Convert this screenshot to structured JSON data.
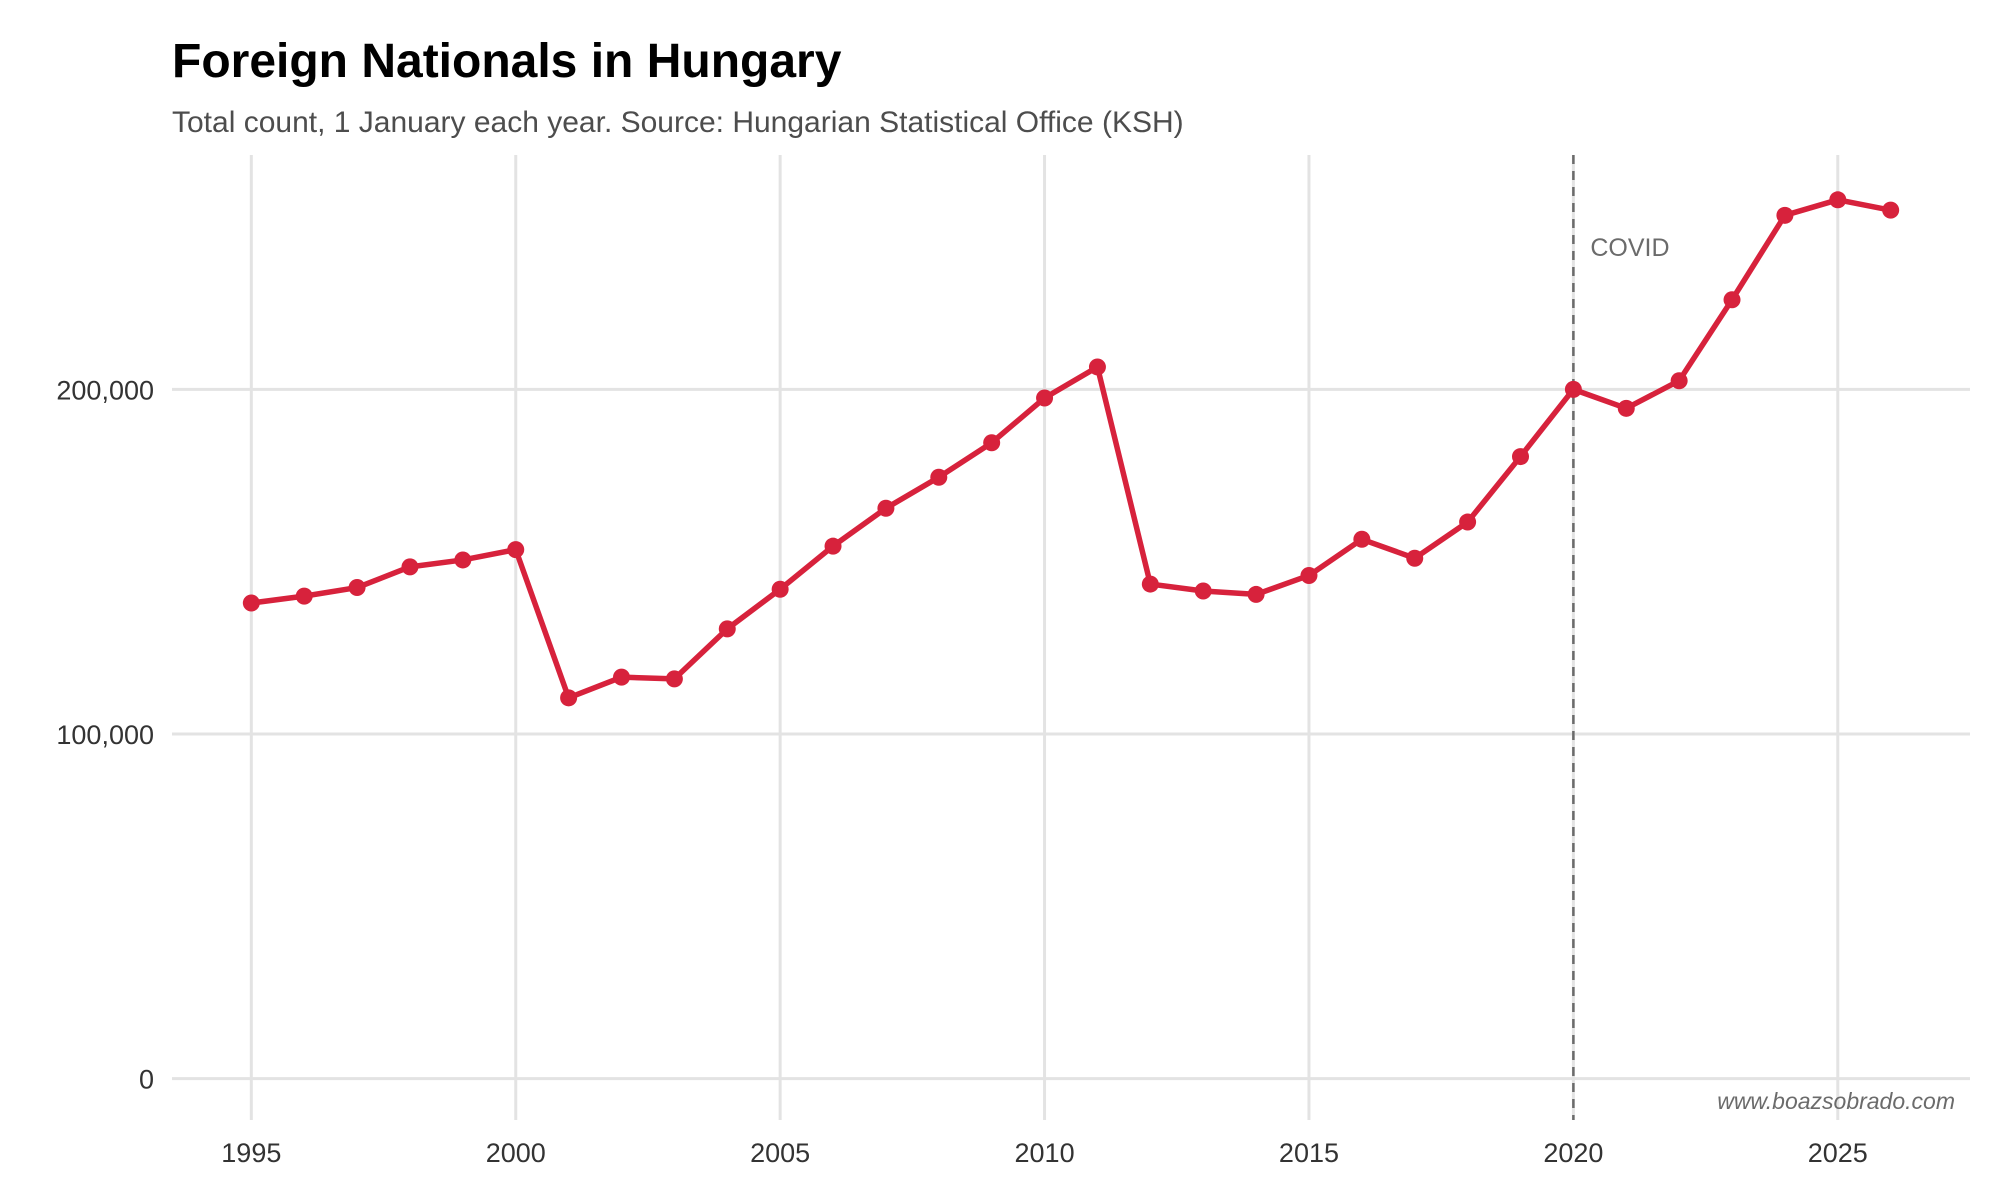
{
  "chart_data": {
    "type": "line",
    "title": "Foreign Nationals in Hungary",
    "subtitle": "Total count, 1 January each year. Source: Hungarian Statistical Office (KSH)",
    "xlabel": "",
    "ylabel": "",
    "x": [
      1995,
      1996,
      1997,
      1998,
      1999,
      2000,
      2001,
      2002,
      2003,
      2004,
      2005,
      2006,
      2007,
      2008,
      2009,
      2010,
      2011,
      2012,
      2013,
      2014,
      2015,
      2016,
      2017,
      2018,
      2019,
      2020,
      2021,
      2022,
      2023,
      2024,
      2025,
      2026
    ],
    "series": [
      {
        "name": "Foreign nationals",
        "color": "#d7223c",
        "values": [
          138000,
          140000,
          142500,
          148500,
          150500,
          153500,
          110500,
          116500,
          116000,
          130500,
          142000,
          154500,
          165500,
          174500,
          184500,
          197500,
          206500,
          143500,
          141500,
          140500,
          146000,
          156500,
          151000,
          161500,
          180500,
          200000,
          194500,
          202500,
          226000,
          250500,
          255000,
          252000
        ]
      }
    ],
    "xlim": [
      1993.5,
      2027.5
    ],
    "ylim": [
      -12000,
      268000
    ],
    "x_ticks": [
      1995,
      2000,
      2005,
      2010,
      2015,
      2020,
      2025
    ],
    "x_tick_labels": [
      "1995",
      "2000",
      "2005",
      "2010",
      "2015",
      "2020",
      "2025"
    ],
    "y_ticks": [
      0,
      100000,
      200000
    ],
    "y_tick_labels": [
      "0",
      "100,000",
      "200,000"
    ],
    "grid": true,
    "annotations": [
      {
        "type": "vline",
        "x": 2020,
        "label": "COVID",
        "color": "#6b6b6b"
      }
    ],
    "caption": "www.boazsobrado.com"
  }
}
